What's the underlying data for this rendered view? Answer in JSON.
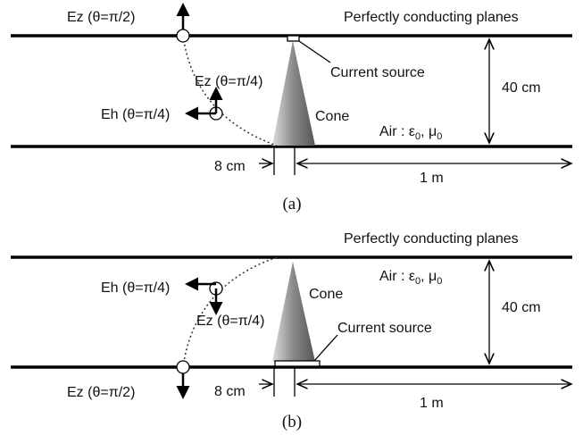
{
  "panels": [
    {
      "caption": "(a)",
      "planes_label": "Perfectly conducting planes",
      "ez_half_pi": "Ez (θ=π/2)",
      "ez_quarter_pi": "Ez (θ=π/4)",
      "eh_quarter_pi": "Eh (θ=π/4)",
      "source_label": "Current source",
      "cone_label": "Cone",
      "air_label": [
        "Air : ε",
        "0",
        ", μ",
        "0"
      ],
      "height_label": "40 cm",
      "offset_label": "8 cm",
      "length_label": "1 m"
    },
    {
      "caption": "(b)",
      "planes_label": "Perfectly conducting planes",
      "ez_half_pi": "Ez (θ=π/2)",
      "ez_quarter_pi": "Ez (θ=π/4)",
      "eh_quarter_pi": "Eh (θ=π/4)",
      "source_label": "Current source",
      "cone_label": "Cone",
      "air_label": [
        "Air : ε",
        "0",
        ", μ",
        "0"
      ],
      "height_label": "40 cm",
      "offset_label": "8 cm",
      "length_label": "1 m"
    }
  ]
}
